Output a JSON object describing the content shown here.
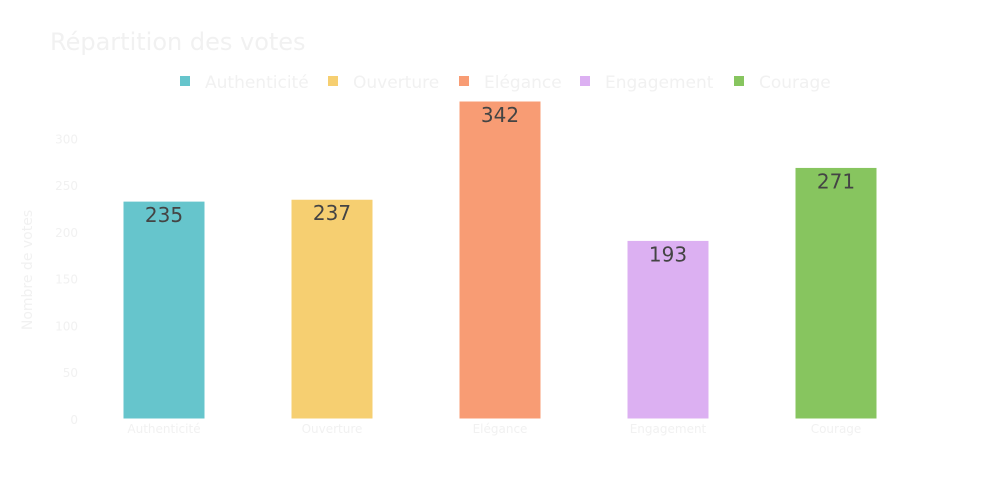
{
  "chart_data": {
    "type": "bar",
    "title": "Répartition des votes",
    "categories": [
      "Authenticité",
      "Ouverture",
      "Elégance",
      "Engagement",
      "Courage"
    ],
    "values": [
      235,
      237,
      342,
      193,
      271
    ],
    "colors": [
      "#66c5cc",
      "#f6cf71",
      "#f89c74",
      "#dcb0f2",
      "#87c55f"
    ],
    "xlabel": "",
    "ylabel": "Nombre de votes",
    "ylim": [
      0,
      342
    ],
    "yticks": [
      0,
      50,
      100,
      150,
      200,
      250,
      300
    ],
    "legend": {
      "placement": "top",
      "entries": [
        "Authenticité",
        "Ouverture",
        "Elégance",
        "Engagement",
        "Courage"
      ]
    },
    "grid": false
  }
}
